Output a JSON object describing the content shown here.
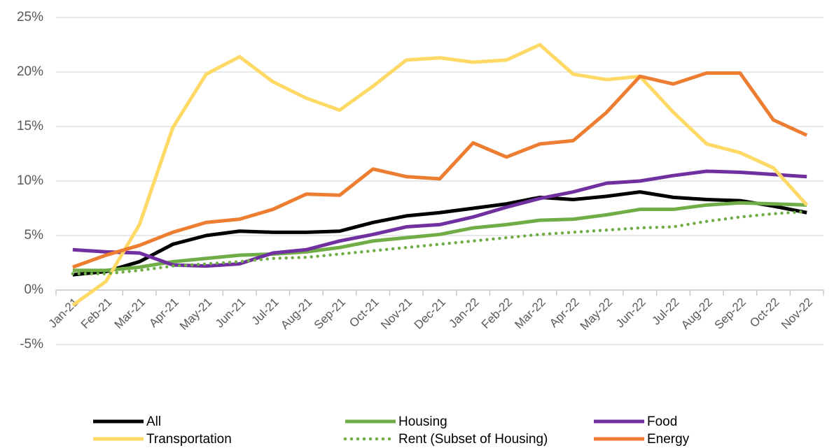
{
  "chart_data": {
    "type": "line",
    "categories": [
      "Jan-21",
      "Feb-21",
      "Mar-21",
      "Apr-21",
      "May-21",
      "Jun-21",
      "Jul-21",
      "Aug-21",
      "Sep-21",
      "Oct-21",
      "Nov-21",
      "Dec-21",
      "Jan-22",
      "Feb-22",
      "Mar-22",
      "Apr-22",
      "May-22",
      "Jun-22",
      "Jul-22",
      "Aug-22",
      "Sep-22",
      "Oct-22",
      "Nov-22"
    ],
    "series": [
      {
        "name": "All",
        "color": "#000000",
        "values": [
          1.4,
          1.7,
          2.6,
          4.2,
          5.0,
          5.4,
          5.3,
          5.3,
          5.4,
          6.2,
          6.8,
          7.1,
          7.5,
          7.9,
          8.5,
          8.3,
          8.6,
          9.0,
          8.5,
          8.3,
          8.2,
          7.7,
          7.1
        ]
      },
      {
        "name": "Housing",
        "color": "#70ad47",
        "values": [
          1.8,
          1.8,
          2.1,
          2.6,
          2.9,
          3.2,
          3.3,
          3.5,
          3.9,
          4.5,
          4.8,
          5.1,
          5.7,
          6.0,
          6.4,
          6.5,
          6.9,
          7.4,
          7.4,
          7.8,
          8.0,
          7.9,
          7.8
        ]
      },
      {
        "name": "Food",
        "color": "#7030a0",
        "values": [
          3.7,
          3.5,
          3.4,
          2.3,
          2.2,
          2.4,
          3.4,
          3.7,
          4.5,
          5.1,
          5.8,
          6.0,
          6.7,
          7.6,
          8.4,
          9.0,
          9.8,
          10.0,
          10.5,
          10.9,
          10.8,
          10.6,
          10.4
        ]
      },
      {
        "name": "Transportation",
        "color": "#ffd966",
        "values": [
          -1.4,
          0.8,
          6.0,
          14.9,
          19.8,
          21.4,
          19.1,
          17.6,
          16.5,
          18.7,
          21.1,
          21.3,
          20.9,
          21.1,
          22.5,
          19.8,
          19.3,
          19.6,
          16.3,
          13.4,
          12.6,
          11.2,
          7.8
        ]
      },
      {
        "name": "Rent (Subset of Housing)",
        "color": "#70ad47",
        "line_style": "dotted",
        "values": [
          1.5,
          1.5,
          1.8,
          2.2,
          2.4,
          2.6,
          2.9,
          3.0,
          3.3,
          3.6,
          3.9,
          4.2,
          4.5,
          4.8,
          5.1,
          5.3,
          5.5,
          5.7,
          5.8,
          6.3,
          6.7,
          7.0,
          7.2
        ]
      },
      {
        "name": "Energy",
        "color": "#ed7d31",
        "values": [
          2.1,
          3.2,
          4.1,
          5.3,
          6.2,
          6.5,
          7.4,
          8.8,
          8.7,
          11.1,
          10.4,
          10.2,
          13.5,
          12.2,
          13.4,
          13.7,
          16.3,
          19.6,
          18.9,
          19.9,
          19.9,
          15.6,
          14.2
        ]
      }
    ],
    "ylim": [
      -5,
      25
    ],
    "yticks": [
      {
        "value": -5,
        "label": "-5%"
      },
      {
        "value": 0,
        "label": "0%"
      },
      {
        "value": 5,
        "label": "5%"
      },
      {
        "value": 10,
        "label": "10%"
      },
      {
        "value": 15,
        "label": "15%"
      },
      {
        "value": 20,
        "label": "20%"
      },
      {
        "value": 25,
        "label": "25%"
      }
    ],
    "grid": true,
    "legend": "bottom"
  }
}
